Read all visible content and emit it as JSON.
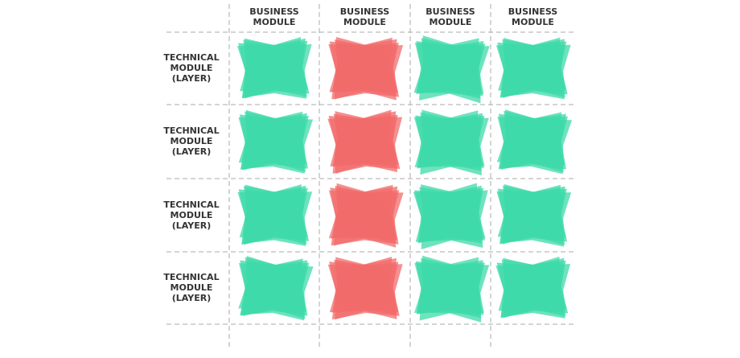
{
  "columns": [
    "BUSINESS MODULE",
    "BUSINESS MODULE",
    "BUSINESS MODULE",
    "BUSINESS MODULE"
  ],
  "rows": [
    "TECHNICAL MODULE (LAYER)",
    "TECHNICAL MODULE (LAYER)",
    "TECHNICAL MODULE (LAYER)",
    "TECHNICAL MODULE (LAYER)"
  ],
  "cells": [
    [
      "#3dd9a8",
      "#f26b6b",
      "#3dd9a8",
      "#3dd9a8"
    ],
    [
      "#3dd9a8",
      "#f26b6b",
      "#3dd9a8",
      "#3dd9a8"
    ],
    [
      "#3dd9a8",
      "#f26b6b",
      "#3dd9a8",
      "#3dd9a8"
    ],
    [
      "#3dd9a8",
      "#f26b6b",
      "#3dd9a8",
      "#3dd9a8"
    ]
  ]
}
